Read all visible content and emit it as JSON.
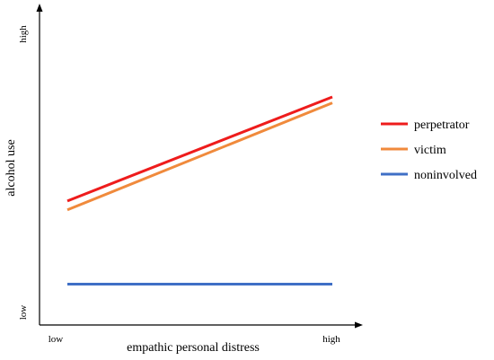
{
  "chart_data": {
    "type": "line",
    "title": "",
    "xlabel": "empathic personal distress",
    "ylabel": "alcohol use",
    "x_tick_labels": [
      "low",
      "high"
    ],
    "y_tick_labels": [
      "low",
      "high"
    ],
    "x": [
      0,
      1
    ],
    "xlim": [
      0,
      1
    ],
    "ylim": [
      0,
      1
    ],
    "grid": false,
    "legend_position": "right",
    "series": [
      {
        "name": "perpetrator",
        "color": "#ee1c1c",
        "values": [
          0.36,
          0.71
        ]
      },
      {
        "name": "victim",
        "color": "#f08a3c",
        "values": [
          0.33,
          0.69
        ]
      },
      {
        "name": "noninvolved",
        "color": "#3f6fc6",
        "values": [
          0.08,
          0.08
        ]
      }
    ]
  }
}
